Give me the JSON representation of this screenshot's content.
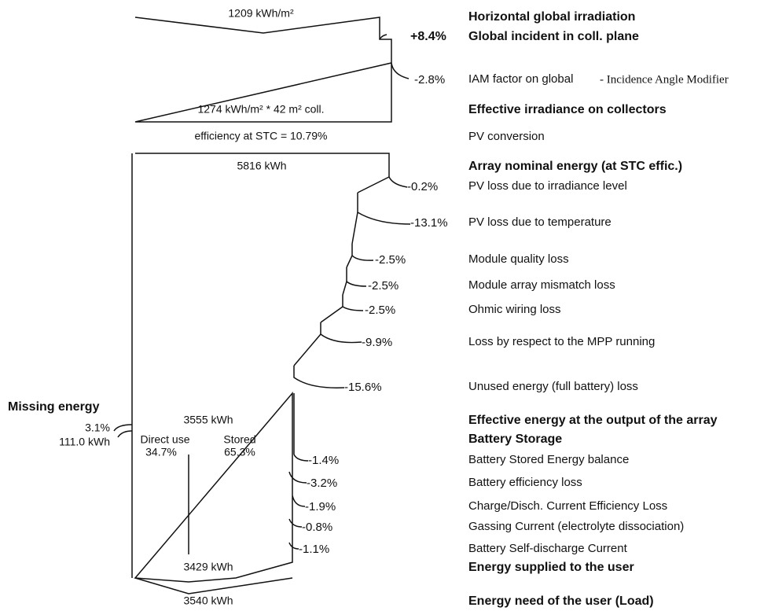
{
  "diagram": {
    "values": {
      "horizontal": "1209 kWh/m²",
      "effective": "1274 kWh/m² * 42 m² coll.",
      "efficiency": "efficiency at STC = 10.79%",
      "nominal": "5816 kWh",
      "array_output": "3555 kWh",
      "supplied": "3429 kWh",
      "need": "3540 kWh"
    },
    "missing": {
      "title": "Missing energy",
      "pct": "3.1%",
      "energy": "111.0 kWh"
    },
    "battery": {
      "direct_label": "Direct use",
      "direct_pct": "34.7%",
      "stored_label": "Stored",
      "stored_pct": "65.3%"
    },
    "iam_note": "- Incidence Angle Modifier",
    "rows": [
      {
        "label": "Horizontal global irradiation"
      },
      {
        "label": "Global incident in coll. plane",
        "pct": "+8.4%"
      },
      {
        "label": "IAM factor on global",
        "pct": "-2.8%"
      },
      {
        "label": "Effective irradiance on collectors"
      },
      {
        "label": "PV conversion"
      },
      {
        "label": "Array nominal energy (at STC effic.)"
      },
      {
        "label": "PV loss due to irradiance level",
        "pct": "-0.2%"
      },
      {
        "label": "PV loss due to temperature",
        "pct": "-13.1%"
      },
      {
        "label": "Module quality loss",
        "pct": "-2.5%"
      },
      {
        "label": "Module array mismatch loss",
        "pct": "-2.5%"
      },
      {
        "label": "Ohmic wiring loss",
        "pct": "-2.5%"
      },
      {
        "label": "Loss by respect to the MPP running",
        "pct": "-9.9%"
      },
      {
        "label": "Unused energy (full battery) loss",
        "pct": "-15.6%"
      },
      {
        "label": "Effective energy at the output of the array"
      },
      {
        "label": "Battery Storage"
      },
      {
        "label": "Battery Stored Energy balance",
        "pct": "-1.4%"
      },
      {
        "label": "Battery efficiency loss",
        "pct": "-3.2%"
      },
      {
        "label": "Charge/Disch. Current Efficiency Loss",
        "pct": "-1.9%"
      },
      {
        "label": "Gassing Current (electrolyte dissociation)",
        "pct": "-0.8%"
      },
      {
        "label": "Battery Self-discharge Current",
        "pct": "-1.1%"
      },
      {
        "label": "Energy supplied to the user"
      },
      {
        "label": "Energy need of the user (Load)"
      }
    ]
  }
}
